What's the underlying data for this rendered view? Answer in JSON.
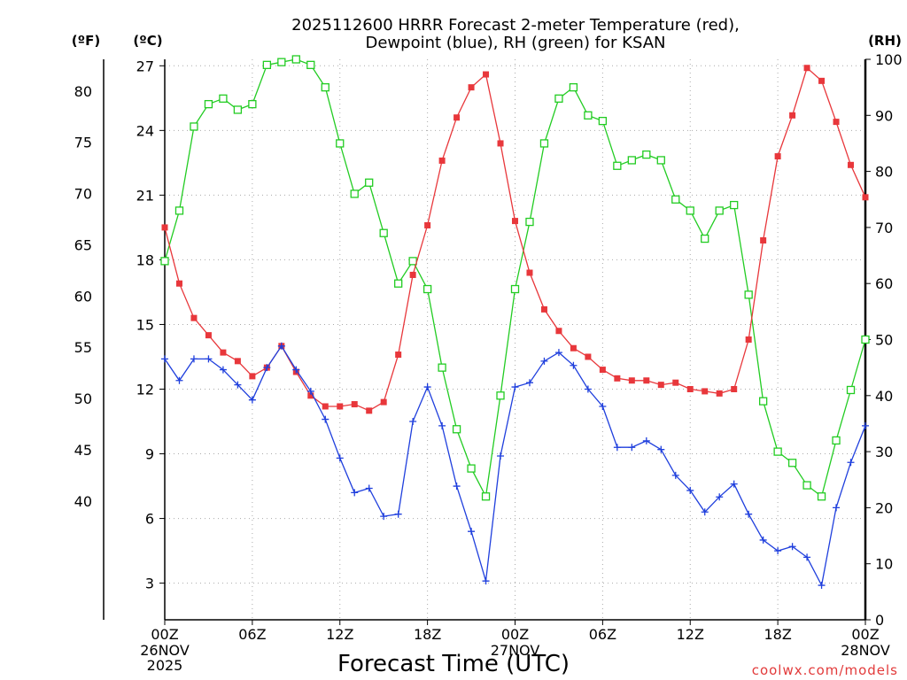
{
  "colors": {
    "temperature": "#e8373b",
    "dewpoint": "#1f3fdd",
    "rh": "#22cc22",
    "grid": "#aaaaaa",
    "credit": "#e23a3a"
  },
  "chart_data": {
    "type": "line",
    "title": "2025112600 HRRR Forecast 2-meter Temperature (red),",
    "title_line2": "Dewpoint (blue), RH (green) for KSAN",
    "xlabel": "Forecast Time (UTC)",
    "credit": "coolwx.com/models",
    "left_outer_axis": {
      "unit": "(ºF)",
      "range": [
        28.4,
        83.1
      ],
      "ticks": [
        "40",
        "45",
        "50",
        "55",
        "60",
        "65",
        "70",
        "75",
        "80"
      ]
    },
    "left_axis": {
      "unit": "(ºC)",
      "range": [
        1.3,
        27.3
      ],
      "ticks": [
        "3",
        "6",
        "9",
        "12",
        "15",
        "18",
        "21",
        "24",
        "27"
      ]
    },
    "right_axis": {
      "unit": "(RH)",
      "range": [
        0,
        100
      ],
      "ticks": [
        "0",
        "10",
        "20",
        "30",
        "40",
        "50",
        "60",
        "70",
        "80",
        "90",
        "100"
      ]
    },
    "x_range_hours": [
      0,
      48
    ],
    "x_ticks": [
      {
        "label": "00Z",
        "sub1": "26NOV",
        "sub2": "2025"
      },
      {
        "label": "06Z",
        "sub1": "",
        "sub2": ""
      },
      {
        "label": "12Z",
        "sub1": "",
        "sub2": ""
      },
      {
        "label": "18Z",
        "sub1": "",
        "sub2": ""
      },
      {
        "label": "00Z",
        "sub1": "27NOV",
        "sub2": ""
      },
      {
        "label": "06Z",
        "sub1": "",
        "sub2": ""
      },
      {
        "label": "12Z",
        "sub1": "",
        "sub2": ""
      },
      {
        "label": "18Z",
        "sub1": "",
        "sub2": ""
      },
      {
        "label": "00Z",
        "sub1": "28NOV",
        "sub2": ""
      }
    ],
    "x_hours": [
      0,
      1,
      2,
      3,
      4,
      5,
      6,
      7,
      8,
      9,
      10,
      11,
      12,
      13,
      14,
      15,
      16,
      17,
      18,
      19,
      20,
      21,
      22,
      23,
      24,
      25,
      26,
      27,
      28,
      29,
      30,
      31,
      32,
      33,
      34,
      35,
      36,
      37,
      38,
      39,
      40,
      41,
      42,
      43,
      44,
      45,
      46,
      47,
      48
    ],
    "series": [
      {
        "name": "Temperature",
        "units": "C",
        "values": [
          19.5,
          16.9,
          15.3,
          14.5,
          13.7,
          13.3,
          12.6,
          13.0,
          14.0,
          12.8,
          11.7,
          11.2,
          11.2,
          11.3,
          11.0,
          11.4,
          13.6,
          17.3,
          19.6,
          22.6,
          24.6,
          26.0,
          26.6,
          23.4,
          19.8,
          17.4,
          15.7,
          14.7,
          13.9,
          13.5,
          12.9,
          12.5,
          12.4,
          12.4,
          12.2,
          12.3,
          12.0,
          11.9,
          11.8,
          12.0,
          14.3,
          18.9,
          22.8,
          24.7,
          26.9,
          26.3,
          24.4,
          22.4,
          20.9
        ]
      },
      {
        "name": "Dewpoint",
        "units": "C",
        "values": [
          13.4,
          12.4,
          13.4,
          13.4,
          12.9,
          12.2,
          11.5,
          13.0,
          14.0,
          12.9,
          11.9,
          10.6,
          8.8,
          7.2,
          7.4,
          6.1,
          6.2,
          10.5,
          12.1,
          10.3,
          7.5,
          5.4,
          3.1,
          8.9,
          12.1,
          12.3,
          13.3,
          13.7,
          13.1,
          12.0,
          11.2,
          9.3,
          9.3,
          9.6,
          9.2,
          8.0,
          7.3,
          6.3,
          7.0,
          7.6,
          6.2,
          5.0,
          4.5,
          4.7,
          4.2,
          2.9,
          6.5,
          8.6,
          10.3
        ]
      },
      {
        "name": "Relative Humidity",
        "units": "%",
        "values": [
          64,
          73,
          88,
          92,
          93,
          91,
          92,
          99,
          99.5,
          100,
          99,
          95,
          85,
          76,
          78,
          69,
          60,
          64,
          59,
          45,
          34,
          27,
          22,
          40,
          59,
          71,
          85,
          93,
          95,
          90,
          89,
          81,
          82,
          83,
          82,
          75,
          73,
          68,
          73,
          74,
          58,
          39,
          30,
          28,
          24,
          22,
          32,
          41,
          50
        ]
      }
    ]
  }
}
